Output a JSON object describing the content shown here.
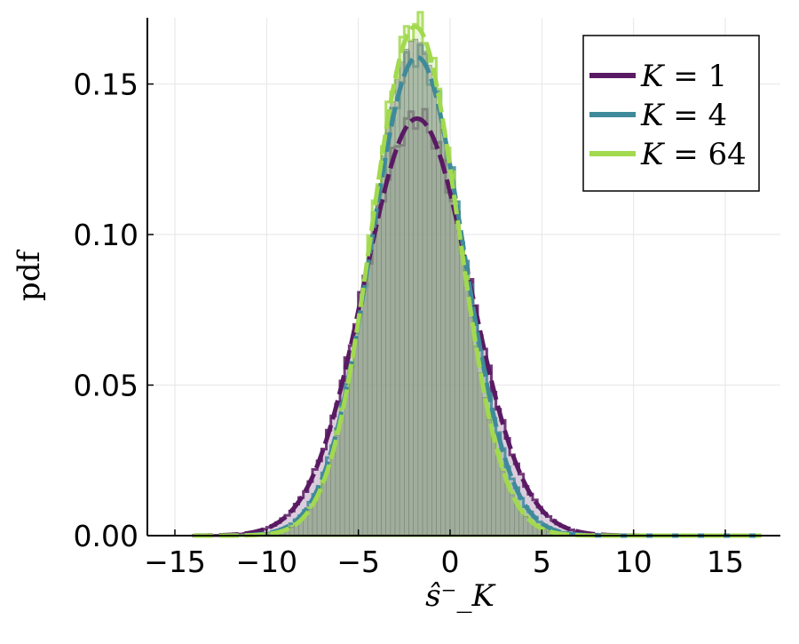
{
  "chart_data": {
    "type": "line",
    "xlabel": "ŝ⁻_K",
    "ylabel": "pdf",
    "xlim": [
      -16.5,
      18
    ],
    "ylim": [
      0,
      0.172
    ],
    "x_ticks": [
      -15,
      -10,
      -5,
      0,
      5,
      10,
      15
    ],
    "x_tick_labels": [
      "−15",
      "−10",
      "−5",
      "0",
      "5",
      "10",
      "15"
    ],
    "y_ticks": [
      0,
      0.05,
      0.1,
      0.15
    ],
    "y_tick_labels": [
      "0.00",
      "0.05",
      "0.10",
      "0.15"
    ],
    "grid": true,
    "legend_position": "top-right",
    "series": [
      {
        "name": "K = 1",
        "color": "#5a1a63",
        "fit": {
          "mean": -1.8,
          "sd": 2.88,
          "x_range": [
            -14,
            17
          ]
        },
        "histogram_peak": 0.139
      },
      {
        "name": "K = 4",
        "color": "#3e8a9a",
        "fit": {
          "mean": -1.8,
          "sd": 2.51,
          "x_range": [
            -14,
            17
          ]
        },
        "histogram_peak": 0.16
      },
      {
        "name": "K = 64",
        "color": "#a2d94f",
        "fit": {
          "mean": -1.9,
          "sd": 2.36,
          "x_range": [
            -14,
            17
          ]
        },
        "histogram_peak": 0.17
      }
    ]
  },
  "legend": {
    "entries": [
      {
        "prefix": "K",
        "rhs": "= 1"
      },
      {
        "prefix": "K",
        "rhs": "= 4"
      },
      {
        "prefix": "K",
        "rhs": "= 64"
      }
    ]
  }
}
